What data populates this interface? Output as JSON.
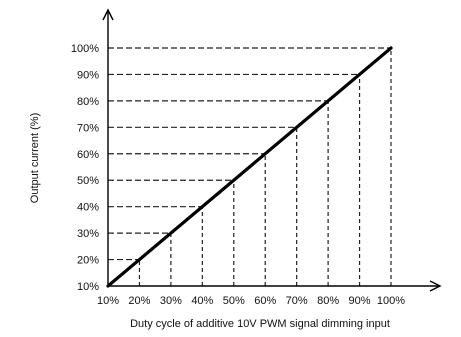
{
  "chart_data": {
    "type": "line",
    "title": "",
    "xlabel": "Duty cycle of additive 10V PWM signal dimming input",
    "ylabel": "Output current (%)",
    "x_ticks": [
      "10%",
      "20%",
      "30%",
      "40%",
      "50%",
      "60%",
      "70%",
      "80%",
      "90%",
      "100%"
    ],
    "y_ticks": [
      "10%",
      "20%",
      "30%",
      "40%",
      "50%",
      "60%",
      "70%",
      "80%",
      "90%",
      "100%"
    ],
    "xlim": [
      10,
      100
    ],
    "ylim": [
      10,
      100
    ],
    "series": [
      {
        "x": [
          10,
          100
        ],
        "y": [
          10,
          100
        ]
      }
    ],
    "guide_lines": "dashed",
    "colors": {
      "line": "#000000",
      "axis": "#000000",
      "guide": "#222222"
    }
  }
}
